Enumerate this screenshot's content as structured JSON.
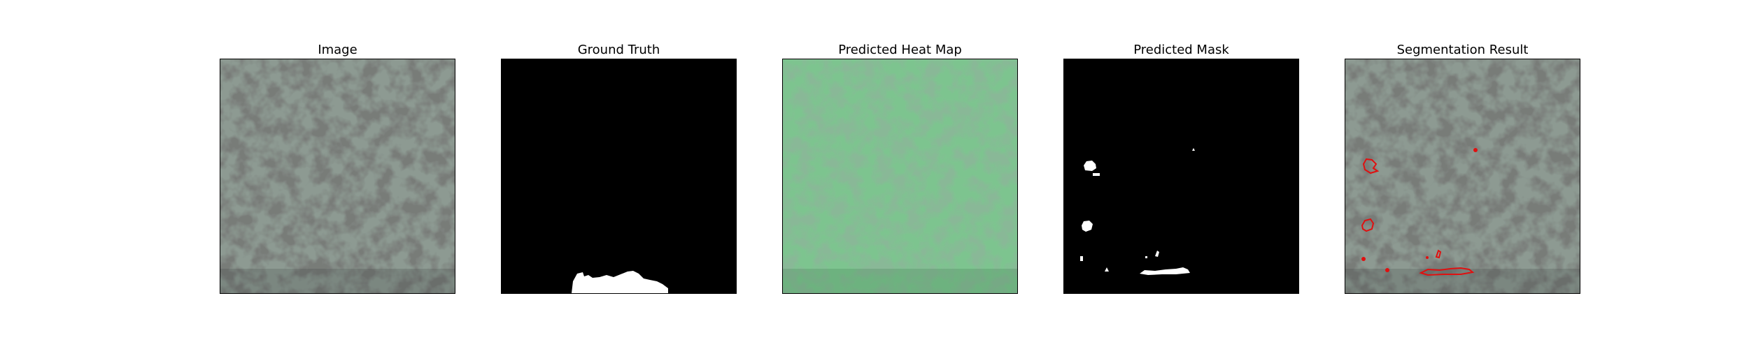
{
  "panels": [
    {
      "title": "Image"
    },
    {
      "title": "Ground Truth"
    },
    {
      "title": "Predicted Heat Map"
    },
    {
      "title": "Predicted Mask"
    },
    {
      "title": "Segmentation Result"
    }
  ],
  "colors": {
    "texture_light": "#8d9a92",
    "texture_dark": "#2f3331",
    "heatmap_light": "#7dc48f",
    "heatmap_dark": "#3f7a4f",
    "mask_fg": "#ffffff",
    "mask_bg": "#000000",
    "contour": "#e01010"
  }
}
